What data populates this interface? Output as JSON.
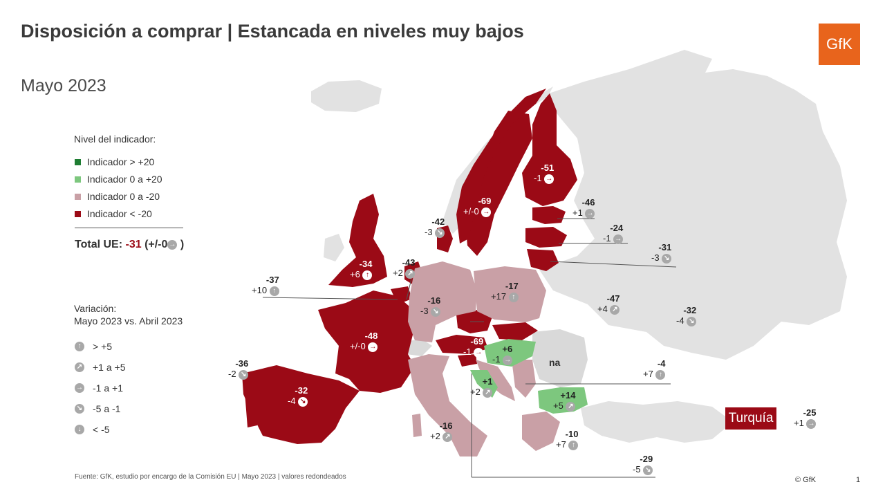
{
  "title": "Disposición a comprar | Estancada en niveles muy bajos",
  "subtitle": "Mayo 2023",
  "logo": "GfK",
  "colors": {
    "very_positive": "#1e7d32",
    "positive": "#7dc77e",
    "slightly_negative": "#c9a0a6",
    "very_negative": "#9b0a16",
    "no_data": "#d9d9d9",
    "background_land": "#e2e2e2",
    "logo": "#e8641c"
  },
  "legend": {
    "title": "Nivel del indicador:",
    "items": [
      {
        "label": "Indicador > +20",
        "color": "#1e7d32"
      },
      {
        "label": "Indicador 0 a +20",
        "color": "#7dc77e"
      },
      {
        "label": "Indicador 0 a -20",
        "color": "#c9a0a6"
      },
      {
        "label": "Indicador < -20",
        "color": "#9b0a16"
      }
    ]
  },
  "total": {
    "label": "Total UE:",
    "value": "-31",
    "change": "(+/-0",
    "close": ")",
    "icon": "arrow-right-icon"
  },
  "variation": {
    "title_line1": "Variación:",
    "title_line2": "Mayo 2023 vs. Abril 2023",
    "items": [
      {
        "label": "> +5",
        "icon": "arrow-up-icon",
        "glyph": "↑"
      },
      {
        "label": "+1 a +5",
        "icon": "arrow-up-right-icon",
        "glyph": "↗"
      },
      {
        "label": "-1 a +1",
        "icon": "arrow-right-icon",
        "glyph": "→"
      },
      {
        "label": "-5 a -1",
        "icon": "arrow-down-right-icon",
        "glyph": "↘"
      },
      {
        "label": "< -5",
        "icon": "arrow-down-icon",
        "glyph": "↓"
      }
    ]
  },
  "regions": [
    {
      "level": "-51",
      "change": "-1",
      "glyph": "→"
    },
    {
      "level": "-69",
      "change": "+/-0",
      "glyph": "→"
    },
    {
      "level": "-46",
      "change": "+1",
      "glyph": "→"
    },
    {
      "level": "-24",
      "change": "-1",
      "glyph": "→"
    },
    {
      "level": "-31",
      "change": "-3",
      "glyph": "↘"
    },
    {
      "level": "-42",
      "change": "-3",
      "glyph": "↘"
    },
    {
      "level": "-43",
      "change": "+2",
      "glyph": "↗"
    },
    {
      "level": "-34",
      "change": "+6",
      "glyph": "↑"
    },
    {
      "level": "-37",
      "change": "+10",
      "glyph": "↑"
    },
    {
      "level": "-16",
      "change": "-3",
      "glyph": "↘"
    },
    {
      "level": "-17",
      "change": "+17",
      "glyph": "↑"
    },
    {
      "level": "-47",
      "change": "+4",
      "glyph": "↗"
    },
    {
      "level": "-32",
      "change": "-4",
      "glyph": "↘"
    },
    {
      "level": "-48",
      "change": "+/-0",
      "glyph": "→"
    },
    {
      "level": "-69",
      "change": "-1",
      "glyph": "→"
    },
    {
      "level": "+6",
      "change": "-1",
      "glyph": "→"
    },
    {
      "level": "-36",
      "change": "-2",
      "glyph": "↘"
    },
    {
      "level": "-32",
      "change": "-4",
      "glyph": "↘"
    },
    {
      "level": "+1",
      "change": "+2",
      "glyph": "↗"
    },
    {
      "level": "-4",
      "change": "+7",
      "glyph": "↑"
    },
    {
      "level": "+14",
      "change": "+5",
      "glyph": "↗"
    },
    {
      "level": "-16",
      "change": "+2",
      "glyph": "↗"
    },
    {
      "level": "-10",
      "change": "+7",
      "glyph": "↑"
    },
    {
      "level": "-29",
      "change": "-5",
      "glyph": "↘"
    },
    {
      "level": "-25",
      "change": "+1",
      "glyph": "→"
    }
  ],
  "na_label": "na",
  "turkey_label": "Turquía",
  "source": "Fuente: GfK, estudio por encargo de la Comisión  EU  | Mayo  2023 | valores redondeados",
  "copyright": "© GfK",
  "page_number": "1"
}
